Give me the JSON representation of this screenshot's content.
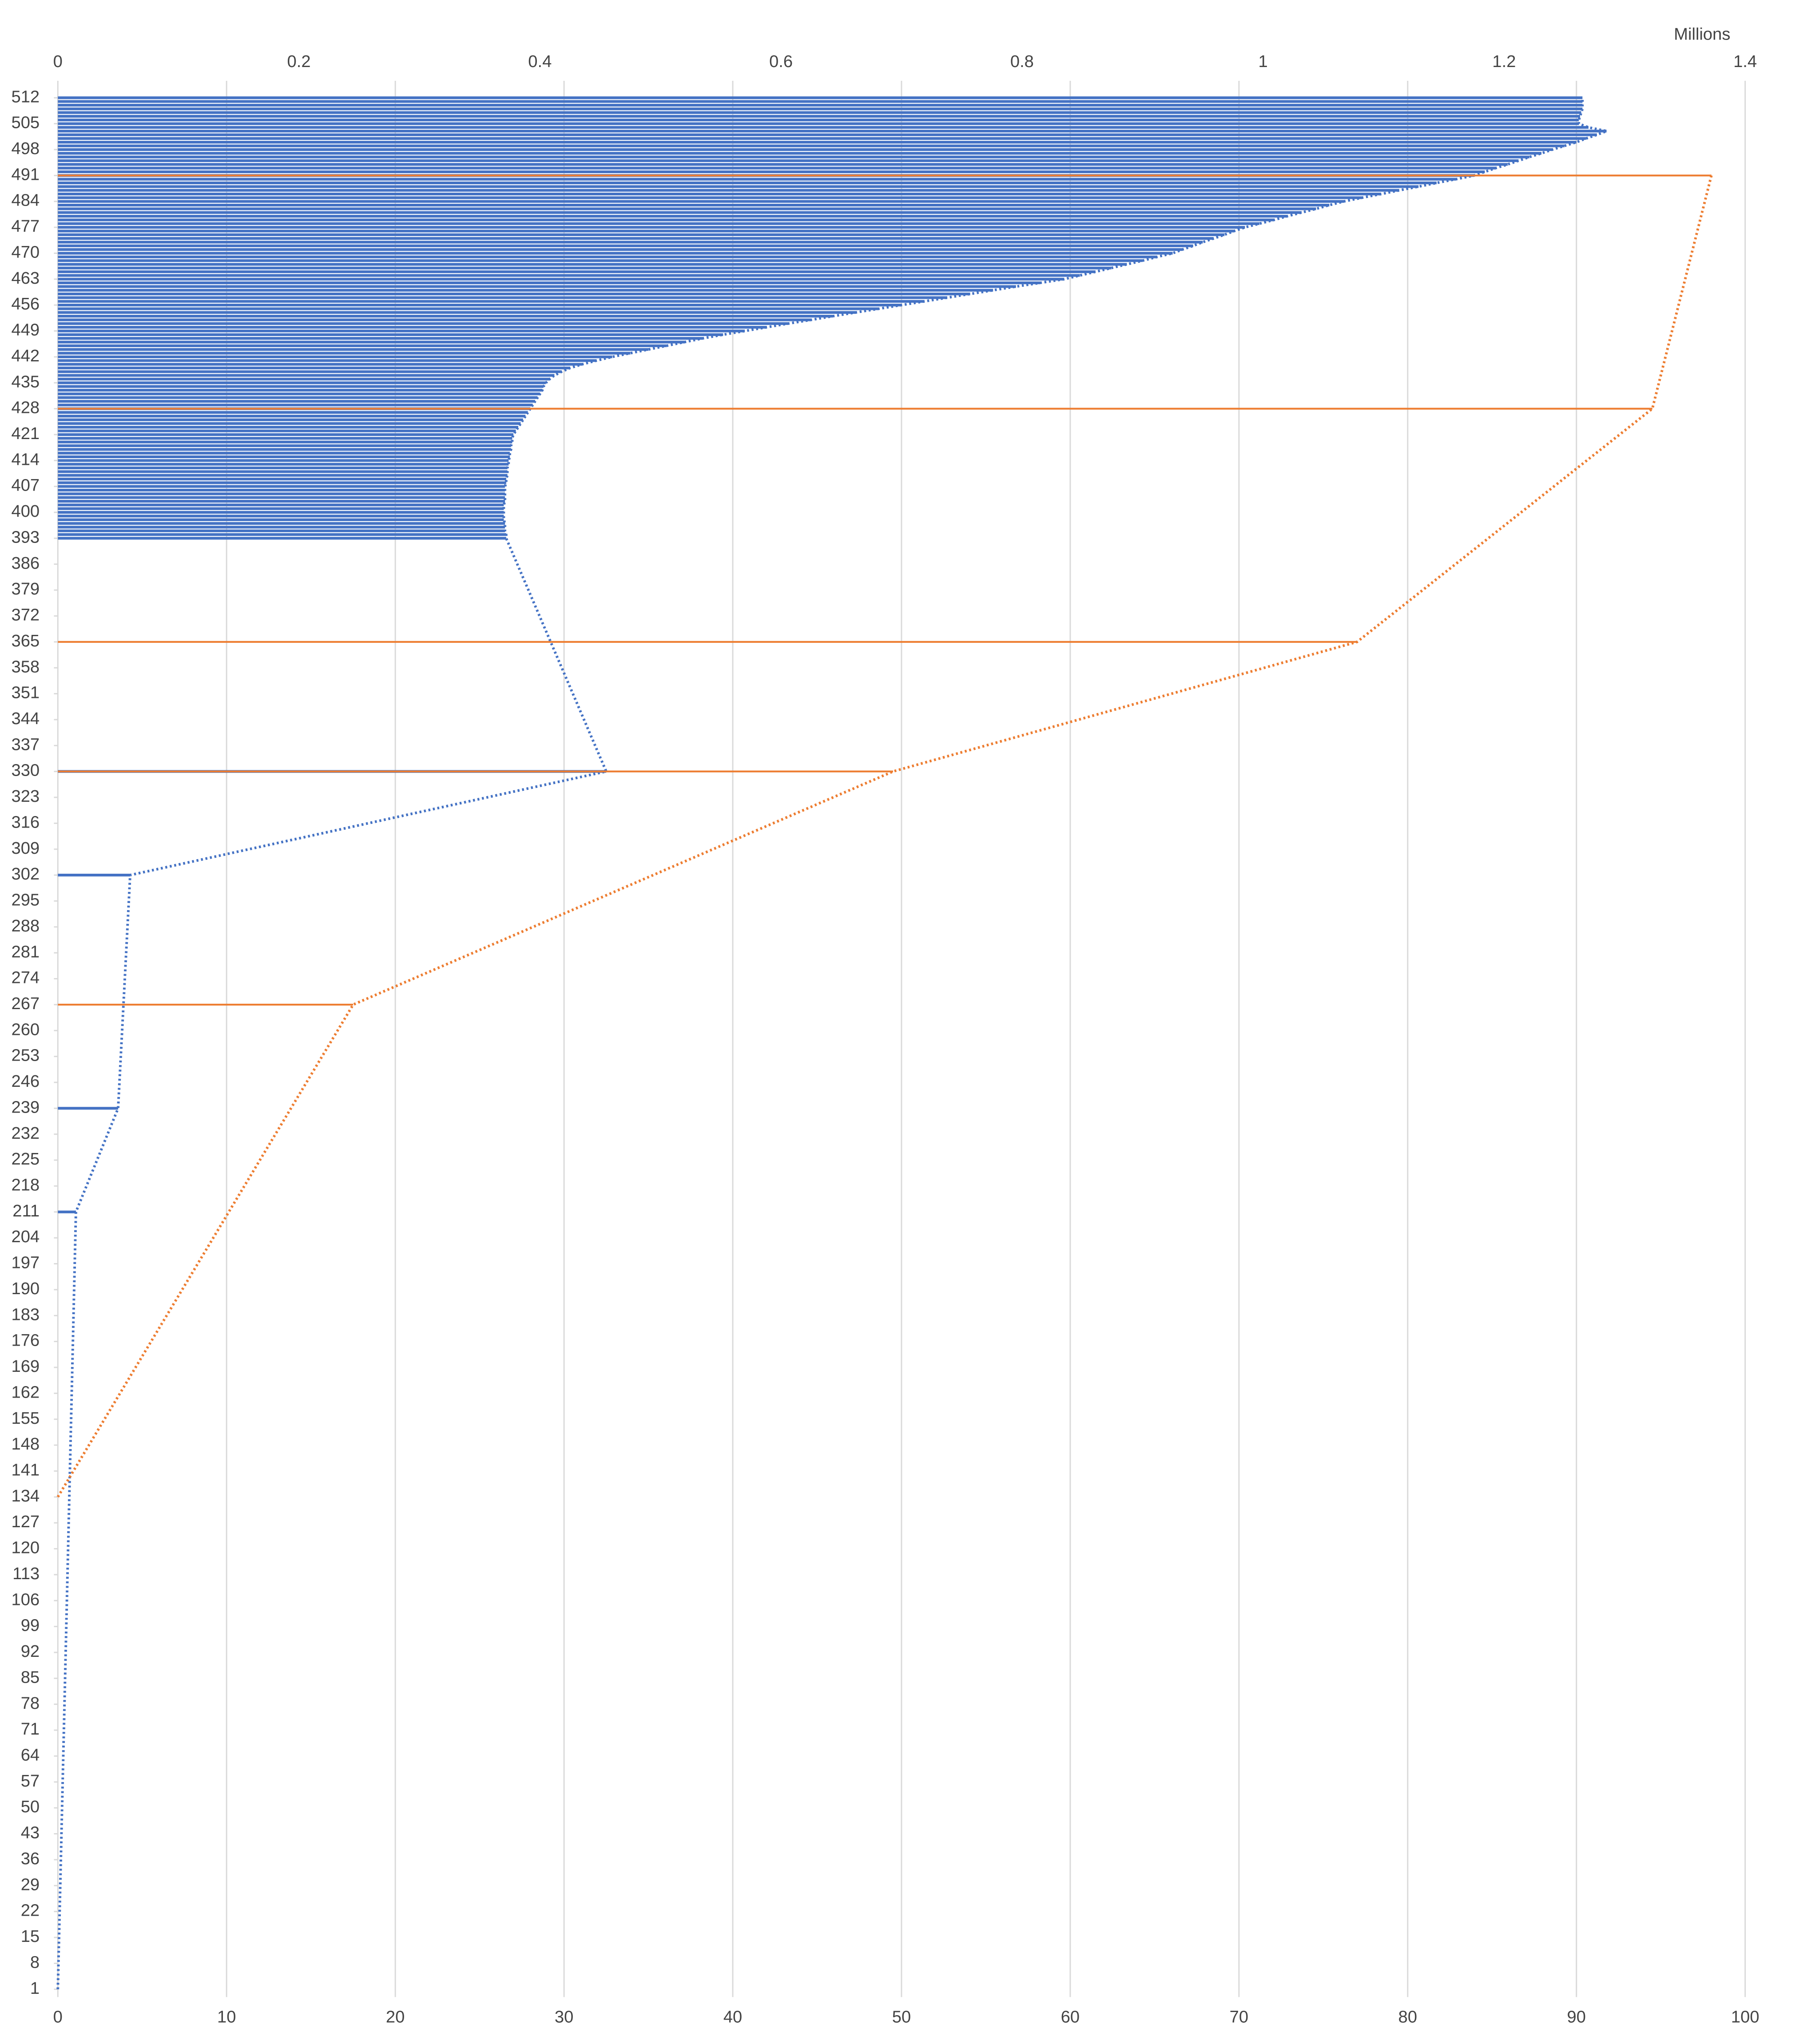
{
  "chart_data": {
    "type": "bar",
    "orientation": "horizontal",
    "x2label": "Millions",
    "xlim": [
      0,
      100
    ],
    "xticks": [
      0,
      10,
      20,
      30,
      40,
      50,
      60,
      70,
      80,
      90,
      100
    ],
    "x2lim": [
      0,
      1.4
    ],
    "x2ticks": [
      0,
      0.2,
      0.4,
      0.6,
      0.8,
      1,
      1.2,
      1.4
    ],
    "ylim": [
      1,
      512
    ],
    "yticks": [
      1,
      8,
      15,
      22,
      29,
      36,
      43,
      50,
      57,
      64,
      71,
      78,
      85,
      92,
      99,
      106,
      113,
      120,
      127,
      134,
      141,
      148,
      155,
      162,
      169,
      176,
      183,
      190,
      197,
      204,
      211,
      218,
      225,
      232,
      239,
      246,
      253,
      260,
      267,
      274,
      281,
      288,
      295,
      302,
      309,
      316,
      323,
      330,
      337,
      344,
      351,
      358,
      365,
      372,
      379,
      386,
      393,
      400,
      407,
      414,
      421,
      428,
      435,
      442,
      449,
      456,
      463,
      470,
      477,
      484,
      491,
      498,
      505,
      512
    ],
    "grid": true,
    "series": [
      {
        "color": "#4472c4",
        "axis": "x2",
        "y": [
          1,
          211,
          239,
          302,
          330,
          393,
          394,
          395,
          396,
          397,
          398,
          399,
          400,
          401,
          402,
          403,
          404,
          405,
          406,
          407,
          408,
          409,
          410,
          411,
          412,
          413,
          414,
          415,
          416,
          417,
          418,
          419,
          420,
          421,
          422,
          423,
          424,
          425,
          426,
          427,
          428,
          429,
          430,
          431,
          432,
          433,
          434,
          435,
          436,
          437,
          438,
          439,
          440,
          441,
          442,
          443,
          444,
          445,
          446,
          447,
          448,
          449,
          450,
          451,
          452,
          453,
          454,
          455,
          456,
          457,
          458,
          459,
          460,
          461,
          462,
          463,
          464,
          465,
          466,
          467,
          468,
          469,
          470,
          471,
          472,
          473,
          474,
          475,
          476,
          477,
          478,
          479,
          480,
          481,
          482,
          483,
          484,
          485,
          486,
          487,
          488,
          489,
          490,
          491,
          492,
          493,
          494,
          495,
          496,
          497,
          498,
          499,
          500,
          501,
          502,
          503,
          504,
          505,
          506,
          507,
          508,
          509,
          510,
          511,
          512
        ],
        "values": [
          0,
          0.015,
          0.05,
          0.06,
          0.455,
          0.372,
          0.372,
          0.371,
          0.371,
          0.371,
          0.37,
          0.37,
          0.37,
          0.37,
          0.37,
          0.371,
          0.371,
          0.371,
          0.371,
          0.371,
          0.372,
          0.372,
          0.373,
          0.373,
          0.373,
          0.374,
          0.374,
          0.375,
          0.375,
          0.376,
          0.376,
          0.377,
          0.377,
          0.378,
          0.38,
          0.382,
          0.384,
          0.386,
          0.388,
          0.39,
          0.392,
          0.394,
          0.396,
          0.398,
          0.4,
          0.402,
          0.403,
          0.405,
          0.408,
          0.412,
          0.418,
          0.425,
          0.435,
          0.447,
          0.46,
          0.475,
          0.49,
          0.505,
          0.52,
          0.535,
          0.552,
          0.57,
          0.588,
          0.606,
          0.625,
          0.643,
          0.662,
          0.681,
          0.7,
          0.719,
          0.738,
          0.757,
          0.776,
          0.795,
          0.815,
          0.835,
          0.848,
          0.861,
          0.874,
          0.887,
          0.9,
          0.912,
          0.925,
          0.933,
          0.942,
          0.95,
          0.959,
          0.968,
          0.976,
          0.985,
          0.997,
          1.009,
          1.02,
          1.032,
          1.044,
          1.055,
          1.067,
          1.082,
          1.098,
          1.113,
          1.129,
          1.144,
          1.16,
          1.175,
          1.184,
          1.193,
          1.203,
          1.212,
          1.221,
          1.231,
          1.24,
          1.25,
          1.26,
          1.268,
          1.277,
          1.285,
          1.27,
          1.262,
          1.262,
          1.263,
          1.264,
          1.265,
          1.265,
          1.265,
          1.265
        ]
      },
      {
        "color": "#ed7d31",
        "axis": "x",
        "y": [
          134,
          267,
          330,
          365,
          428,
          491
        ],
        "values": [
          0,
          17.5,
          49.5,
          77,
          94.5,
          98
        ]
      }
    ]
  }
}
